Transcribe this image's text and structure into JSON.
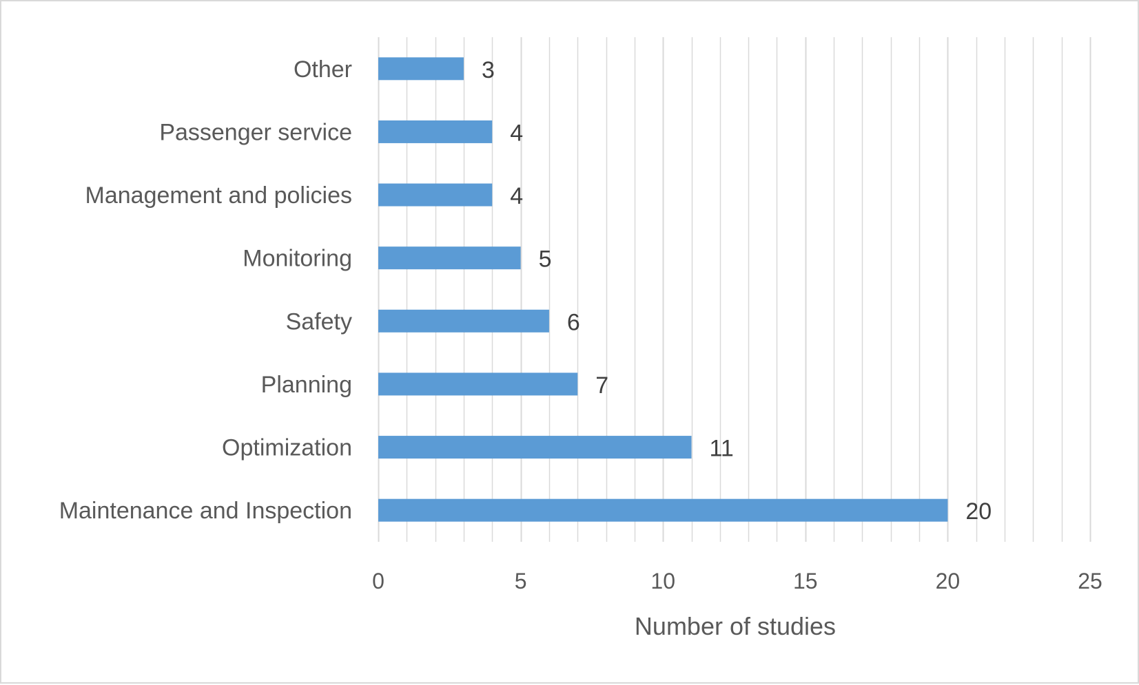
{
  "chart_data": {
    "type": "bar",
    "orientation": "horizontal",
    "title": "",
    "xlabel": "Number of studies",
    "ylabel": "",
    "categories": [
      "Maintenance and Inspection",
      "Optimization",
      "Planning",
      "Safety",
      "Monitoring",
      "Management and policies",
      "Passenger service",
      "Other"
    ],
    "values": [
      20,
      11,
      7,
      6,
      5,
      4,
      4,
      3
    ],
    "xlim": [
      0,
      25
    ],
    "xticks": [
      0,
      5,
      10,
      15,
      20,
      25
    ],
    "minor_gridline_step": 1,
    "grid": true,
    "legend": "none",
    "data_labels": true,
    "bar_color": "#5b9bd5",
    "gridline_color": "#d9d9d9"
  }
}
